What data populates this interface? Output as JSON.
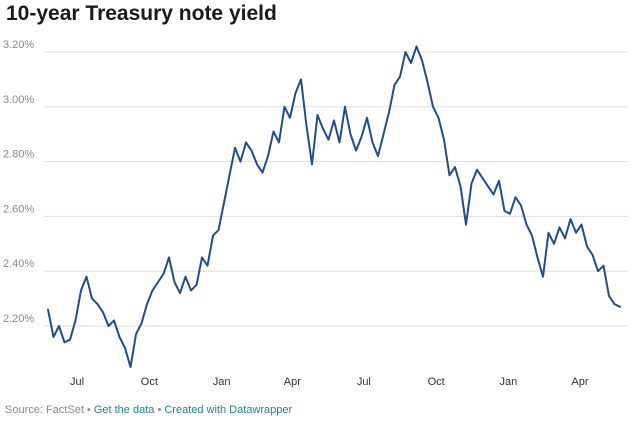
{
  "chart_data": {
    "type": "line",
    "title": "10-year Treasury note yield",
    "xlabel": "",
    "ylabel": "",
    "ylim": [
      2.05,
      3.25
    ],
    "y_ticks": [
      2.2,
      2.4,
      2.6,
      2.8,
      3.0,
      3.2
    ],
    "y_tick_labels": [
      "2.20%",
      "2.40%",
      "2.60%",
      "2.80%",
      "3.00%",
      "3.20%"
    ],
    "x_ticks": [
      "2018-07-01",
      "2018-10-01",
      "2019-01-01",
      "2019-04-01",
      "2019-07-01",
      "2019-10-01",
      "2020-01-01",
      "2020-04-01"
    ],
    "x_tick_labels": [
      "Jul",
      "Oct",
      "Jan",
      "Apr",
      "Jul",
      "Oct",
      "Jan",
      "Apr"
    ],
    "grid": true,
    "legend": "none",
    "line_color": "#1f4e8c",
    "series": [
      {
        "x": [
          "2018-05-25",
          "2018-06-01",
          "2018-06-08",
          "2018-06-15",
          "2018-06-22",
          "2018-06-29",
          "2018-07-06",
          "2018-07-13",
          "2018-07-20",
          "2018-07-27",
          "2018-08-03",
          "2018-08-10",
          "2018-08-17",
          "2018-08-24",
          "2018-08-31",
          "2018-09-07",
          "2018-09-14",
          "2018-09-21",
          "2018-09-28",
          "2018-10-05",
          "2018-10-12",
          "2018-10-19",
          "2018-10-26",
          "2018-11-02",
          "2018-11-09",
          "2018-11-16",
          "2018-11-23",
          "2018-11-30",
          "2018-12-07",
          "2018-12-14",
          "2018-12-21",
          "2018-12-28",
          "2019-01-04",
          "2019-01-11",
          "2019-01-18",
          "2019-01-25",
          "2019-02-01",
          "2019-02-08",
          "2019-02-15",
          "2019-02-22",
          "2019-03-01",
          "2019-03-08",
          "2019-03-15",
          "2019-03-22",
          "2019-03-29",
          "2019-04-05",
          "2019-04-12",
          "2019-04-19",
          "2019-04-26",
          "2019-05-03",
          "2019-05-10",
          "2019-05-17",
          "2019-05-24",
          "2019-05-31",
          "2019-06-07",
          "2019-06-14",
          "2019-06-21",
          "2019-06-28",
          "2019-07-05",
          "2019-07-12",
          "2019-07-19",
          "2019-07-26",
          "2019-08-02",
          "2019-08-09",
          "2019-08-16",
          "2019-08-23",
          "2019-08-30",
          "2019-09-06",
          "2019-09-13",
          "2019-09-20",
          "2019-09-27",
          "2019-10-04",
          "2019-10-11",
          "2019-10-18",
          "2019-10-25",
          "2019-11-01",
          "2019-11-08",
          "2019-11-15",
          "2019-11-22",
          "2019-11-29",
          "2019-12-06",
          "2019-12-13",
          "2019-12-20",
          "2019-12-27",
          "2020-01-03",
          "2020-01-10",
          "2020-01-17",
          "2020-01-24",
          "2020-01-31",
          "2020-02-07",
          "2020-02-14",
          "2020-02-21",
          "2020-02-28",
          "2020-03-06",
          "2020-03-13",
          "2020-03-20",
          "2020-03-27",
          "2020-04-03",
          "2020-04-10",
          "2020-04-17",
          "2020-04-24",
          "2020-05-01",
          "2020-05-08",
          "2020-05-15",
          "2020-05-22"
        ],
        "values": [
          2.26,
          2.16,
          2.2,
          2.14,
          2.15,
          2.22,
          2.33,
          2.38,
          2.3,
          2.28,
          2.25,
          2.2,
          2.22,
          2.16,
          2.12,
          2.05,
          2.17,
          2.21,
          2.28,
          2.33,
          2.36,
          2.39,
          2.45,
          2.36,
          2.32,
          2.38,
          2.33,
          2.35,
          2.45,
          2.42,
          2.53,
          2.55,
          2.65,
          2.75,
          2.85,
          2.8,
          2.87,
          2.84,
          2.79,
          2.76,
          2.82,
          2.91,
          2.87,
          3.0,
          2.96,
          3.05,
          3.1,
          2.93,
          2.79,
          2.97,
          2.92,
          2.88,
          2.95,
          2.87,
          3.0,
          2.9,
          2.84,
          2.89,
          2.96,
          2.87,
          2.82,
          2.9,
          2.98,
          3.08,
          3.11,
          3.2,
          3.16,
          3.22,
          3.17,
          3.09,
          3.0,
          2.96,
          2.88,
          2.75,
          2.78,
          2.71,
          2.57,
          2.72,
          2.77,
          2.74,
          2.71,
          2.68,
          2.73,
          2.62,
          2.61,
          2.67,
          2.64,
          2.57,
          2.53,
          2.45,
          2.38,
          2.54,
          2.5,
          2.56,
          2.52,
          2.59,
          2.54,
          2.57,
          2.49,
          2.46,
          2.4,
          2.42,
          2.31,
          2.28,
          2.27
        ]
      }
    ]
  },
  "footer": {
    "source": "Source: FactSet",
    "sep1": " • ",
    "get_data": "Get the data",
    "sep2": " • ",
    "created": "Created with Datawrapper"
  }
}
